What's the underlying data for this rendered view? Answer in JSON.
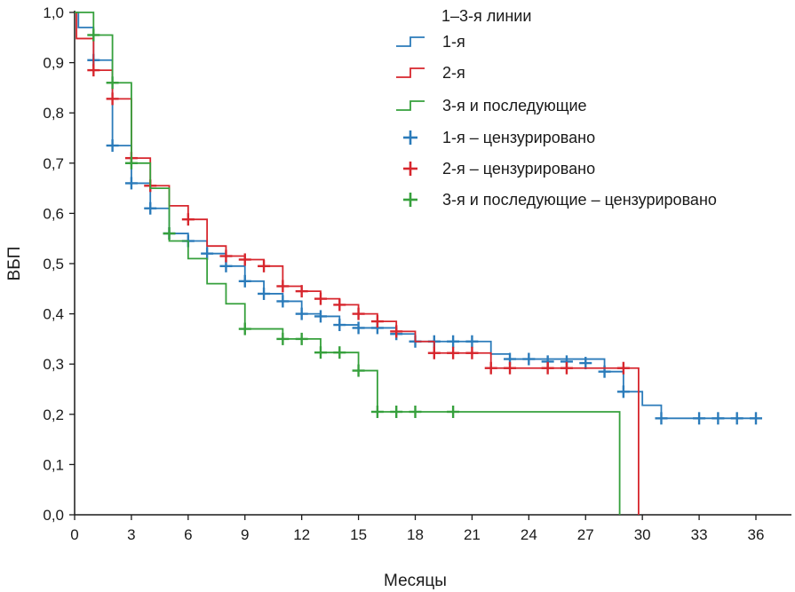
{
  "chart_data": {
    "type": "line",
    "subtype": "kaplan-meier-step",
    "title": "",
    "xlabel": "Месяцы",
    "ylabel": "ВБП",
    "xlim": [
      0,
      37
    ],
    "ylim": [
      0,
      1.0
    ],
    "x_ticks": [
      0,
      3,
      6,
      9,
      12,
      15,
      18,
      21,
      24,
      27,
      30,
      33,
      36
    ],
    "x_tick_labels": [
      "0",
      "3",
      "6",
      "9",
      "12",
      "15",
      "18",
      "21",
      "24",
      "27",
      "30",
      "33",
      "36"
    ],
    "y_ticks": [
      0,
      0.1,
      0.2,
      0.3,
      0.4,
      0.5,
      0.6,
      0.7,
      0.8,
      0.9,
      1.0
    ],
    "y_tick_labels": [
      "0,0",
      "0,1",
      "0,2",
      "0,3",
      "0,4",
      "0,5",
      "0,6",
      "0,7",
      "0,8",
      "0,9",
      "1,0"
    ],
    "legend": {
      "title": "1–3-я линии",
      "placement": "top-right",
      "entries": [
        {
          "label": "1-я",
          "kind": "line",
          "color": "#2b7bba"
        },
        {
          "label": "2-я",
          "kind": "line",
          "color": "#d7262d"
        },
        {
          "label": "3-я и последующие",
          "kind": "line",
          "color": "#36a03c"
        },
        {
          "label": "1-я – цензурировано",
          "kind": "marker",
          "color": "#2b7bba"
        },
        {
          "label": "2-я – цензурировано",
          "kind": "marker",
          "color": "#d7262d"
        },
        {
          "label": "3-я и последующие – цензурировано",
          "kind": "marker",
          "color": "#36a03c"
        }
      ]
    },
    "series": [
      {
        "name": "1-я",
        "color": "#2b7bba",
        "steps": [
          [
            0,
            1.0
          ],
          [
            0.2,
            0.97
          ],
          [
            1,
            0.905
          ],
          [
            2,
            0.735
          ],
          [
            3,
            0.66
          ],
          [
            4,
            0.61
          ],
          [
            5,
            0.56
          ],
          [
            6,
            0.545
          ],
          [
            7,
            0.52
          ],
          [
            8,
            0.495
          ],
          [
            9,
            0.465
          ],
          [
            10,
            0.44
          ],
          [
            11,
            0.425
          ],
          [
            12,
            0.4
          ],
          [
            13,
            0.395
          ],
          [
            14,
            0.378
          ],
          [
            15,
            0.372
          ],
          [
            17,
            0.36
          ],
          [
            18,
            0.345
          ],
          [
            22,
            0.32
          ],
          [
            23,
            0.31
          ],
          [
            28,
            0.285
          ],
          [
            29,
            0.245
          ],
          [
            30,
            0.218
          ],
          [
            31,
            0.192
          ]
        ],
        "end_x": 36,
        "censored": [
          [
            1,
            0.905
          ],
          [
            2,
            0.735
          ],
          [
            3,
            0.66
          ],
          [
            4,
            0.61
          ],
          [
            5,
            0.56
          ],
          [
            6,
            0.545
          ],
          [
            7,
            0.52
          ],
          [
            8,
            0.495
          ],
          [
            9,
            0.465
          ],
          [
            10,
            0.44
          ],
          [
            11,
            0.425
          ],
          [
            12,
            0.4
          ],
          [
            13,
            0.395
          ],
          [
            14,
            0.378
          ],
          [
            15,
            0.372
          ],
          [
            16,
            0.372
          ],
          [
            17,
            0.36
          ],
          [
            18,
            0.345
          ],
          [
            19,
            0.345
          ],
          [
            20,
            0.345
          ],
          [
            21,
            0.345
          ],
          [
            23,
            0.31
          ],
          [
            24,
            0.31
          ],
          [
            25,
            0.305
          ],
          [
            26,
            0.305
          ],
          [
            27,
            0.302
          ],
          [
            28,
            0.285
          ],
          [
            29,
            0.245
          ],
          [
            31,
            0.192
          ],
          [
            33,
            0.192
          ],
          [
            34,
            0.192
          ],
          [
            35,
            0.192
          ],
          [
            36,
            0.192
          ]
        ]
      },
      {
        "name": "2-я",
        "color": "#d7262d",
        "steps": [
          [
            0,
            1.0
          ],
          [
            0.1,
            0.948
          ],
          [
            1,
            0.885
          ],
          [
            2,
            0.828
          ],
          [
            3,
            0.71
          ],
          [
            4,
            0.655
          ],
          [
            5,
            0.615
          ],
          [
            6,
            0.588
          ],
          [
            7,
            0.535
          ],
          [
            8,
            0.515
          ],
          [
            9,
            0.508
          ],
          [
            10,
            0.495
          ],
          [
            11,
            0.455
          ],
          [
            12,
            0.445
          ],
          [
            13,
            0.43
          ],
          [
            14,
            0.418
          ],
          [
            15,
            0.4
          ],
          [
            16,
            0.385
          ],
          [
            17,
            0.365
          ],
          [
            18,
            0.345
          ],
          [
            19,
            0.322
          ],
          [
            22,
            0.292
          ]
        ],
        "end_x": 29.8,
        "drop_to_zero": true,
        "censored": [
          [
            1,
            0.885
          ],
          [
            2,
            0.828
          ],
          [
            3,
            0.71
          ],
          [
            4,
            0.655
          ],
          [
            6,
            0.588
          ],
          [
            8,
            0.515
          ],
          [
            9,
            0.508
          ],
          [
            10,
            0.495
          ],
          [
            11,
            0.455
          ],
          [
            12,
            0.445
          ],
          [
            13,
            0.43
          ],
          [
            14,
            0.418
          ],
          [
            15,
            0.4
          ],
          [
            16,
            0.385
          ],
          [
            17,
            0.365
          ],
          [
            19,
            0.322
          ],
          [
            20,
            0.322
          ],
          [
            21,
            0.322
          ],
          [
            22,
            0.292
          ],
          [
            23,
            0.292
          ],
          [
            25,
            0.292
          ],
          [
            26,
            0.292
          ],
          [
            29,
            0.292
          ]
        ]
      },
      {
        "name": "3-я и последующие",
        "color": "#36a03c",
        "steps": [
          [
            0,
            1.0
          ],
          [
            1,
            0.955
          ],
          [
            2,
            0.86
          ],
          [
            3,
            0.7
          ],
          [
            4,
            0.65
          ],
          [
            5,
            0.545
          ],
          [
            6,
            0.51
          ],
          [
            7,
            0.46
          ],
          [
            8,
            0.42
          ],
          [
            9,
            0.37
          ],
          [
            11,
            0.35
          ],
          [
            13,
            0.323
          ],
          [
            15,
            0.287
          ],
          [
            16,
            0.205
          ]
        ],
        "end_x": 28.8,
        "drop_to_zero": true,
        "censored": [
          [
            1,
            0.955
          ],
          [
            2,
            0.86
          ],
          [
            3,
            0.7
          ],
          [
            5,
            0.56
          ],
          [
            9,
            0.37
          ],
          [
            11,
            0.35
          ],
          [
            12,
            0.35
          ],
          [
            13,
            0.323
          ],
          [
            14,
            0.323
          ],
          [
            15,
            0.287
          ],
          [
            16,
            0.205
          ],
          [
            17,
            0.205
          ],
          [
            18,
            0.205
          ],
          [
            20,
            0.205
          ]
        ]
      }
    ]
  }
}
